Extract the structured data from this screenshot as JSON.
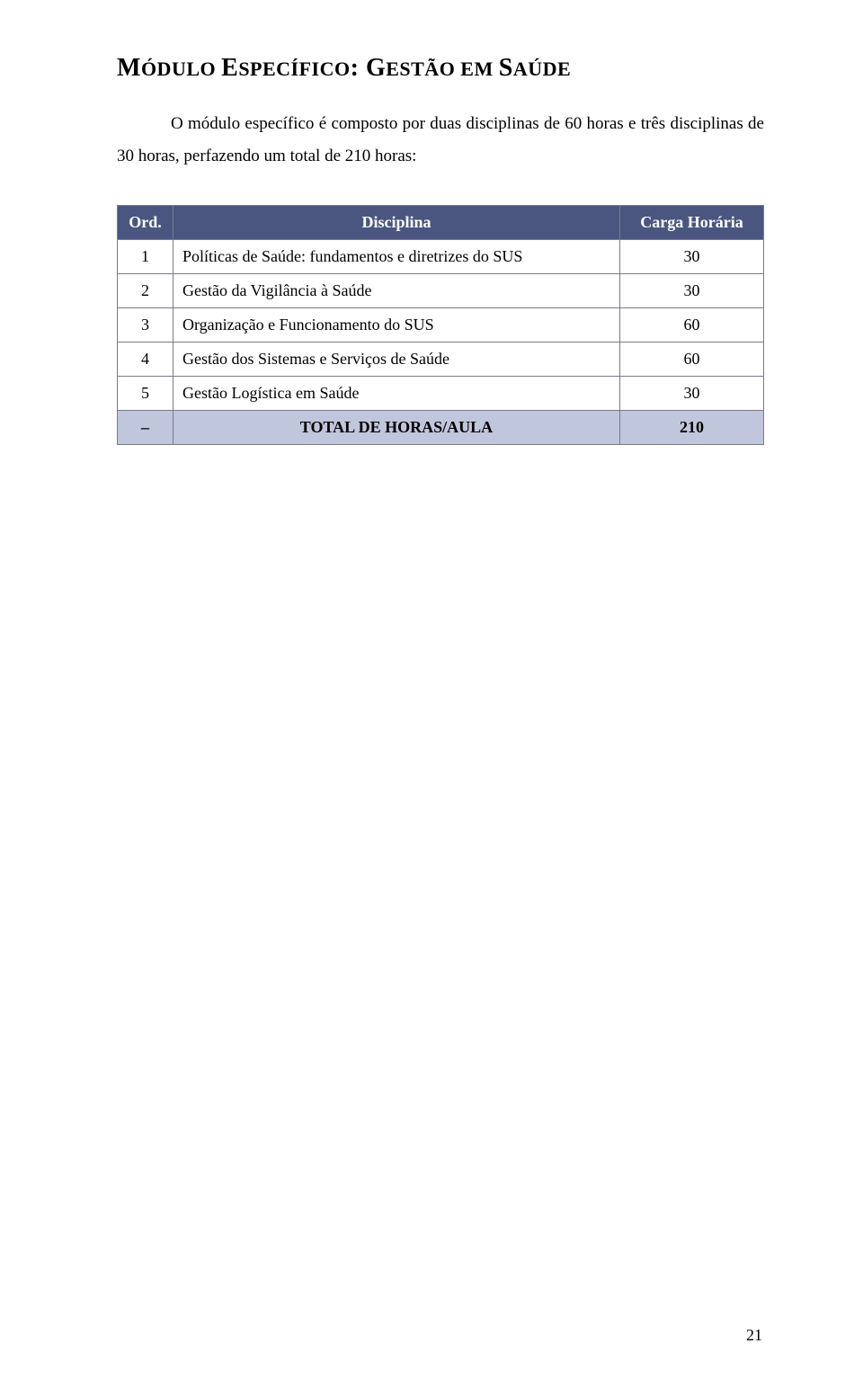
{
  "heading": {
    "segments": [
      {
        "t": "M",
        "big": true
      },
      {
        "t": "ÓDULO ",
        "big": false
      },
      {
        "t": "E",
        "big": true
      },
      {
        "t": "SPECÍFICO",
        "big": false
      },
      {
        "t": ": ",
        "big": true
      },
      {
        "t": "G",
        "big": true
      },
      {
        "t": "ESTÃO EM ",
        "big": false
      },
      {
        "t": "S",
        "big": true
      },
      {
        "t": "AÚDE",
        "big": false
      }
    ]
  },
  "intro": "O módulo específico é composto por duas disciplinas de 60 horas e três disciplinas de 30 horas, perfazendo um total de 210 horas:",
  "table": {
    "headers": {
      "ord": "Ord.",
      "disciplina": "Disciplina",
      "carga": "Carga Horária"
    },
    "rows": [
      {
        "ord": "1",
        "disciplina": "Políticas de Saúde: fundamentos e diretrizes do SUS",
        "carga": "30"
      },
      {
        "ord": "2",
        "disciplina": "Gestão da Vigilância à Saúde",
        "carga": "30"
      },
      {
        "ord": "3",
        "disciplina": "Organização e Funcionamento do SUS",
        "carga": "60"
      },
      {
        "ord": "4",
        "disciplina": "Gestão dos Sistemas e Serviços de Saúde",
        "carga": "60"
      },
      {
        "ord": "5",
        "disciplina": "Gestão Logística em Saúde",
        "carga": "30"
      }
    ],
    "total": {
      "ord": "–",
      "disciplina": "TOTAL DE HORAS/AULA",
      "carga": "210"
    },
    "colors": {
      "header_bg": "#4a5680",
      "header_fg": "#ffffff",
      "total_bg": "#c0c6dc",
      "border": "#7a7a8a"
    }
  },
  "page_number": "21"
}
